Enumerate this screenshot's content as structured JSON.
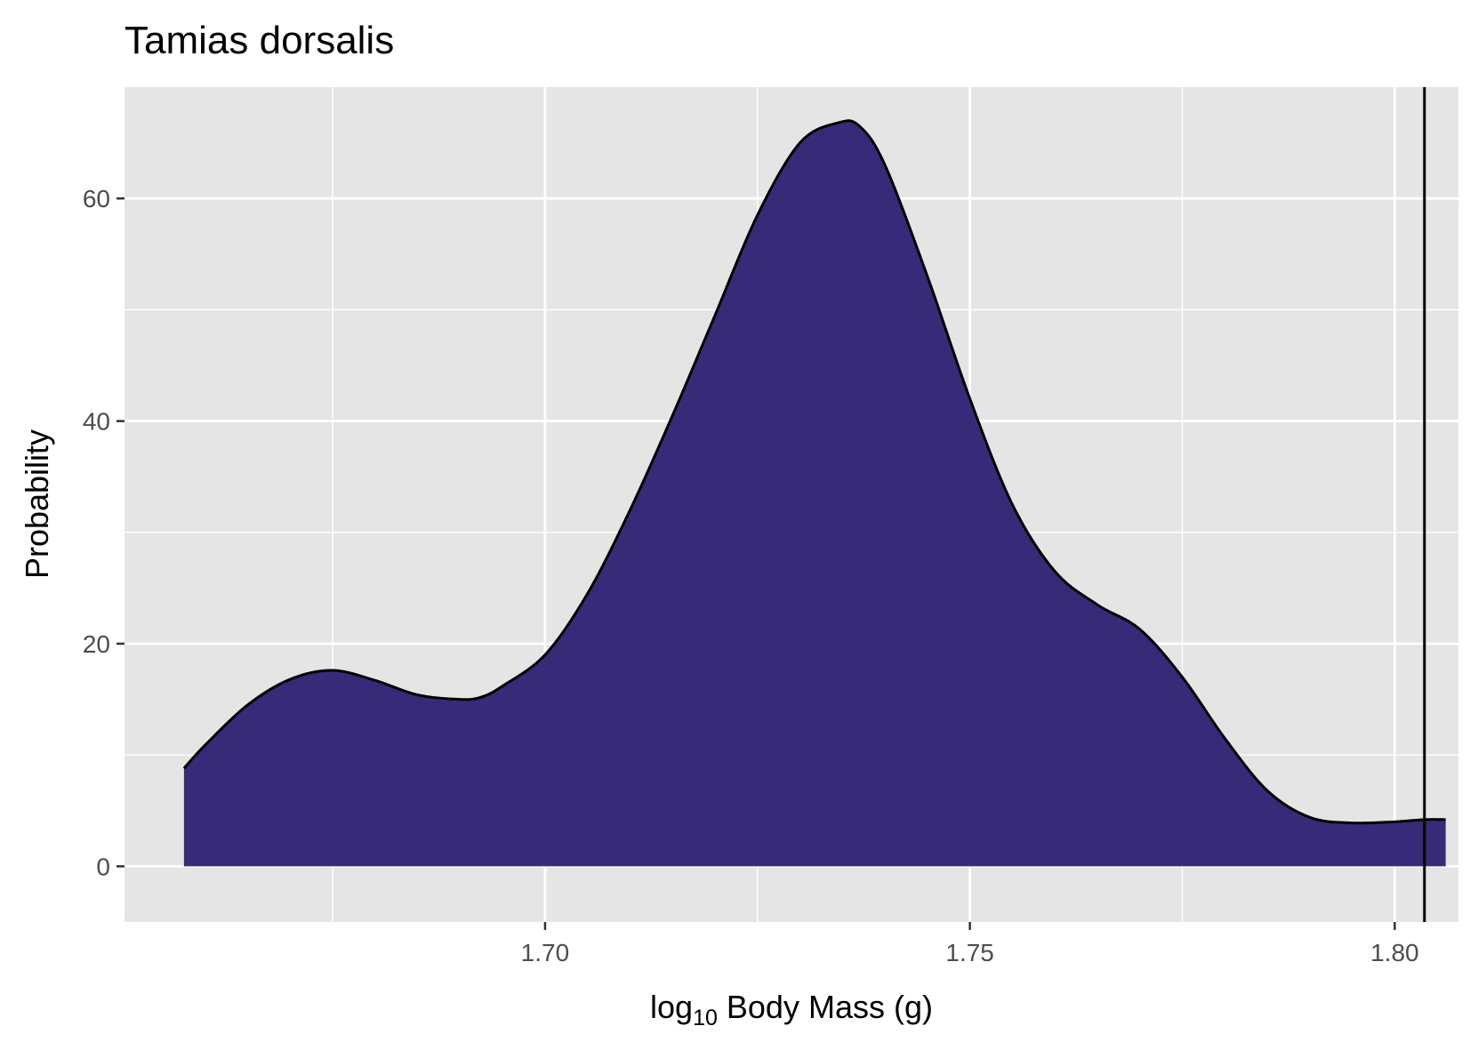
{
  "chart_data": {
    "type": "area",
    "title": "Tamias dorsalis",
    "xlabel_prefix": "log",
    "xlabel_sub": "10",
    "xlabel_suffix": " Body Mass (g)",
    "ylabel": "Probability",
    "xlim": [
      1.6505,
      1.8075
    ],
    "ylim": [
      -5,
      70
    ],
    "x_ticks": [
      1.7,
      1.75,
      1.8
    ],
    "x_tick_labels": [
      "1.70",
      "1.75",
      "1.80"
    ],
    "x_minor_ticks": [
      1.675,
      1.725,
      1.775
    ],
    "y_ticks": [
      0,
      20,
      40,
      60
    ],
    "y_tick_labels": [
      "0",
      "20",
      "40",
      "60"
    ],
    "y_minor_ticks": [
      10,
      30,
      50
    ],
    "grid": true,
    "legend": "none",
    "fill_color": "#372B79",
    "line_color": "#000000",
    "panel_color": "#E5E5E5",
    "vline_x": 1.8035,
    "density": {
      "x": [
        1.6575,
        1.66,
        1.665,
        1.67,
        1.675,
        1.68,
        1.685,
        1.69,
        1.6925,
        1.695,
        1.7,
        1.705,
        1.71,
        1.715,
        1.72,
        1.725,
        1.73,
        1.7345,
        1.737,
        1.74,
        1.745,
        1.75,
        1.755,
        1.76,
        1.765,
        1.77,
        1.775,
        1.78,
        1.785,
        1.79,
        1.795,
        1.8,
        1.8035,
        1.806
      ],
      "y": [
        8.8,
        10.9,
        14.5,
        16.8,
        17.6,
        16.7,
        15.4,
        15.0,
        15.2,
        16.2,
        19.0,
        24.5,
        32.0,
        40.5,
        49.5,
        58.5,
        65.0,
        66.8,
        66.5,
        63.0,
        53.0,
        42.0,
        32.5,
        26.5,
        23.5,
        21.3,
        17.0,
        11.5,
        6.8,
        4.4,
        3.9,
        4.0,
        4.2,
        4.2
      ]
    }
  }
}
